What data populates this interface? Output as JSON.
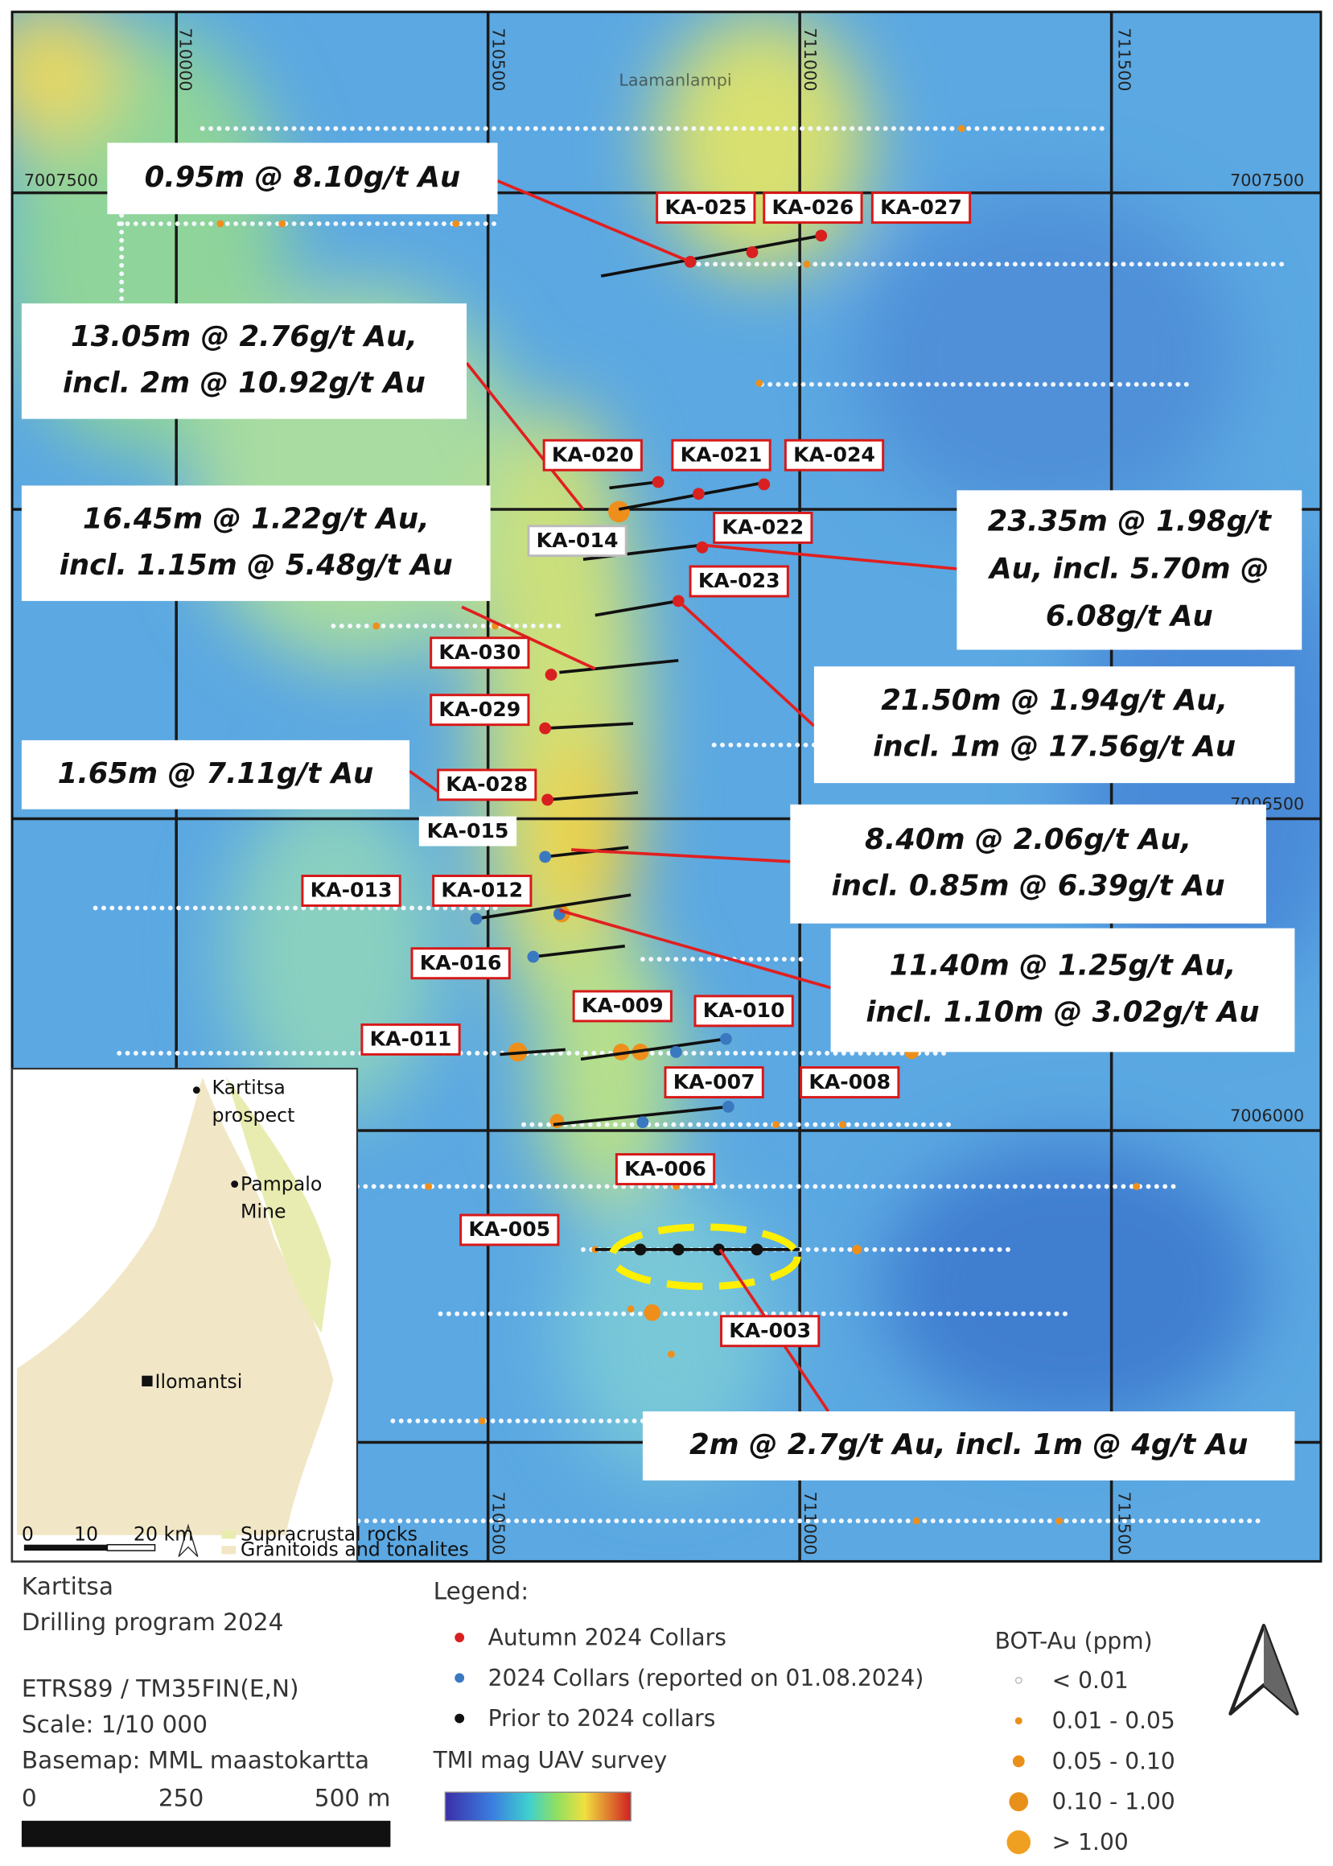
{
  "grid_labels": {
    "top": [
      "710000",
      "710500",
      "711000",
      "711500"
    ],
    "bottom": [
      "710500",
      "711000",
      "711500"
    ],
    "left": [
      "7007500"
    ],
    "right": [
      "7007500",
      "7006500",
      "7006000"
    ]
  },
  "place_names": [
    "Laamanlampi"
  ],
  "hole_labels": [
    "KA-025",
    "KA-026",
    "KA-027",
    "KA-020",
    "KA-021",
    "KA-024",
    "KA-014",
    "KA-022",
    "KA-023",
    "KA-030",
    "KA-029",
    "KA-028",
    "KA-015",
    "KA-013",
    "KA-012",
    "KA-016",
    "KA-011",
    "KA-009",
    "KA-010",
    "KA-007",
    "KA-008",
    "KA-006",
    "KA-005",
    "KA-003"
  ],
  "intercepts": [
    {
      "lines": [
        "0.95m @ 8.10g/t Au"
      ]
    },
    {
      "lines": [
        "13.05m @ 2.76g/t Au,",
        "incl. 2m @ 10.92g/t Au"
      ]
    },
    {
      "lines": [
        "16.45m @ 1.22g/t Au,",
        "incl. 1.15m @ 5.48g/t Au"
      ]
    },
    {
      "lines": [
        "23.35m @ 1.98g/t",
        "Au, incl. 5.70m @",
        "6.08g/t Au"
      ]
    },
    {
      "lines": [
        "21.50m @ 1.94g/t Au,",
        "incl. 1m @ 17.56g/t Au"
      ]
    },
    {
      "lines": [
        "1.65m @ 7.11g/t Au"
      ]
    },
    {
      "lines": [
        "8.40m @ 2.06g/t Au,",
        "incl. 0.85m @ 6.39g/t Au"
      ]
    },
    {
      "lines": [
        "11.40m @ 1.25g/t Au,",
        "incl. 1.10m @ 3.02g/t Au"
      ]
    },
    {
      "lines": [
        "2m @ 2.7g/t Au, incl. 1m @ 4g/t Au"
      ]
    }
  ],
  "inset": {
    "places": [
      "Kartitsa",
      "prospect",
      "Pampalo",
      "Mine",
      "Ilomantsi"
    ],
    "scale": [
      "0",
      "10",
      "20 km"
    ],
    "legend": [
      "Supracrustal rocks",
      "Granitoids and tonalites"
    ]
  },
  "footer": {
    "title": [
      "Kartitsa",
      "Drilling program 2024"
    ],
    "info": [
      "ETRS89 / TM35FIN(E,N)",
      "Scale: 1/10 000",
      "Basemap: MML maastokartta"
    ],
    "scale": [
      "0",
      "250",
      "500 m"
    ]
  },
  "legend": {
    "title": "Legend:",
    "collars": [
      "Autumn 2024 Collars",
      "2024 Collars (reported on 01.08.2024)",
      "Prior to 2024 collars"
    ],
    "survey": "TMI mag UAV survey",
    "bot_title": "BOT-Au (ppm)",
    "bot_classes": [
      "< 0.01",
      "0.01 - 0.05",
      "0.05 - 0.10",
      "0.10 - 1.00",
      "> 1.00"
    ]
  }
}
